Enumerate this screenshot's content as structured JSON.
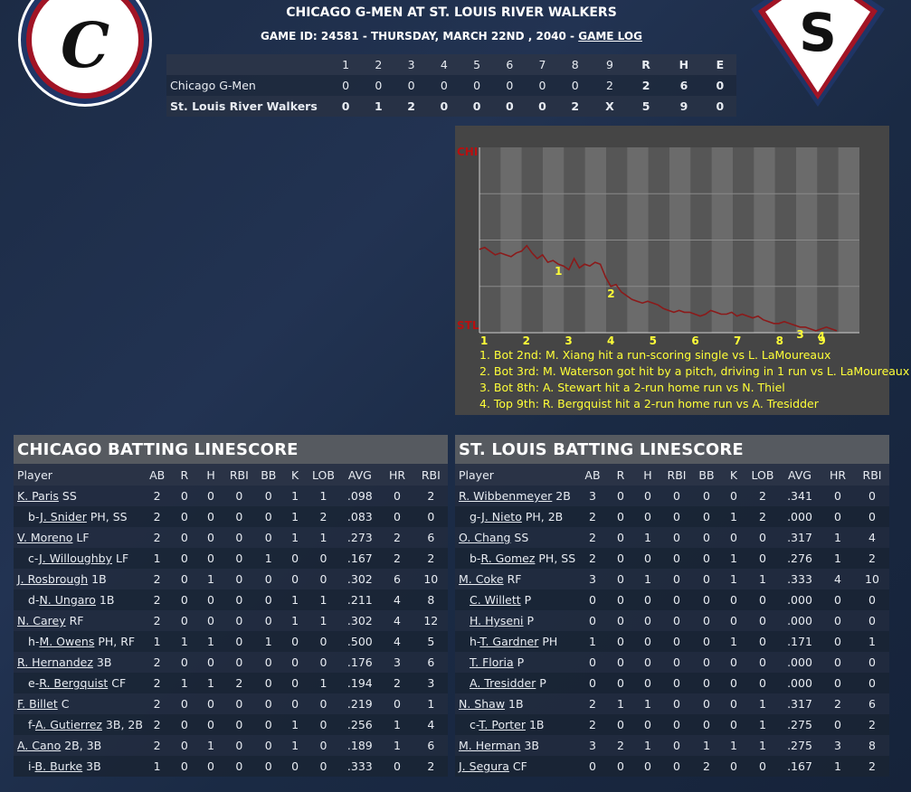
{
  "header": {
    "title": "CHICAGO G-MEN AT ST. LOUIS RIVER WALKERS",
    "game_info": "GAME ID: 24581 - THURSDAY, MARCH 22ND , 2040 - ",
    "game_log_link": "GAME LOG",
    "away_logo_letter": "C",
    "home_logo_letter": "S"
  },
  "linescore": {
    "columns": [
      "",
      "1",
      "2",
      "3",
      "4",
      "5",
      "6",
      "7",
      "8",
      "9",
      "R",
      "H",
      "E"
    ],
    "away": {
      "team": "Chicago G-Men",
      "innings": [
        "0",
        "0",
        "0",
        "0",
        "0",
        "0",
        "0",
        "0",
        "2"
      ],
      "R": "2",
      "H": "6",
      "E": "0"
    },
    "home": {
      "team": "St. Louis River Walkers",
      "innings": [
        "0",
        "1",
        "2",
        "0",
        "0",
        "0",
        "0",
        "2",
        "X"
      ],
      "R": "5",
      "H": "9",
      "E": "0"
    }
  },
  "win_prob": {
    "top_label": "CHI",
    "bottom_label": "STL",
    "innings": [
      "1",
      "2",
      "3",
      "4",
      "5",
      "6",
      "7",
      "8",
      "9"
    ],
    "series_stl_win_prob": [
      0.45,
      0.46,
      0.44,
      0.42,
      0.43,
      0.42,
      0.41,
      0.43,
      0.44,
      0.47,
      0.43,
      0.4,
      0.42,
      0.38,
      0.39,
      0.37,
      0.36,
      0.34,
      0.4,
      0.35,
      0.37,
      0.36,
      0.38,
      0.37,
      0.3,
      0.25,
      0.26,
      0.22,
      0.2,
      0.18,
      0.17,
      0.16,
      0.17,
      0.16,
      0.15,
      0.13,
      0.12,
      0.11,
      0.12,
      0.11,
      0.11,
      0.1,
      0.09,
      0.1,
      0.12,
      0.11,
      0.1,
      0.1,
      0.11,
      0.09,
      0.1,
      0.09,
      0.08,
      0.09,
      0.07,
      0.06,
      0.05,
      0.05,
      0.06,
      0.05,
      0.04,
      0.03,
      0.03,
      0.02,
      0.01,
      0.02,
      0.03,
      0.02,
      0.01
    ],
    "markers": [
      {
        "label": "1",
        "index": 15
      },
      {
        "label": "2",
        "index": 25
      },
      {
        "label": "3",
        "index": 61
      },
      {
        "label": "4",
        "index": 65
      }
    ],
    "notes": [
      "1. Bot 2nd: M. Xiang hit a run-scoring single vs L. LaMoureaux",
      "2. Bot 3rd: M. Waterson got hit by a pitch, driving in 1 run vs L. LaMoureaux",
      "3. Bot 8th: A. Stewart hit a 2-run home run vs N. Thiel",
      "4. Top 9th: R. Bergquist hit a 2-run home run vs A. Tresidder"
    ],
    "colors": {
      "line": "#8b1a1a",
      "markers": "#ffff38",
      "label": "#b80f0f"
    }
  },
  "chicago": {
    "title": "CHICAGO BATTING LINESCORE",
    "headers": [
      "Player",
      "AB",
      "R",
      "H",
      "RBI",
      "BB",
      "K",
      "LOB",
      "AVG",
      "HR",
      "RBI"
    ],
    "rows": [
      {
        "prefix": "",
        "name": "K. Paris",
        "pos": " SS",
        "stats": [
          "2",
          "0",
          "0",
          "0",
          "0",
          "1",
          "1",
          ".098",
          "0",
          "2"
        ]
      },
      {
        "prefix": "b-",
        "name": "J. Snider",
        "pos": " PH, SS",
        "stats": [
          "2",
          "0",
          "0",
          "0",
          "0",
          "1",
          "2",
          ".083",
          "0",
          "0"
        ]
      },
      {
        "prefix": "",
        "name": "V. Moreno",
        "pos": " LF",
        "stats": [
          "2",
          "0",
          "0",
          "0",
          "0",
          "1",
          "1",
          ".273",
          "2",
          "6"
        ]
      },
      {
        "prefix": "c-",
        "name": "J. Willoughby",
        "pos": " LF",
        "stats": [
          "1",
          "0",
          "0",
          "0",
          "1",
          "0",
          "0",
          ".167",
          "2",
          "2"
        ]
      },
      {
        "prefix": "",
        "name": "J. Rosbrough",
        "pos": " 1B",
        "stats": [
          "2",
          "0",
          "1",
          "0",
          "0",
          "0",
          "0",
          ".302",
          "6",
          "10"
        ]
      },
      {
        "prefix": "d-",
        "name": "N. Ungaro",
        "pos": " 1B",
        "stats": [
          "2",
          "0",
          "0",
          "0",
          "0",
          "1",
          "1",
          ".211",
          "4",
          "8"
        ]
      },
      {
        "prefix": "",
        "name": "N. Carey",
        "pos": " RF",
        "stats": [
          "2",
          "0",
          "0",
          "0",
          "0",
          "1",
          "1",
          ".302",
          "4",
          "12"
        ]
      },
      {
        "prefix": "h-",
        "name": "M. Owens",
        "pos": " PH, RF",
        "stats": [
          "1",
          "1",
          "1",
          "0",
          "1",
          "0",
          "0",
          ".500",
          "4",
          "5"
        ]
      },
      {
        "prefix": "",
        "name": "R. Hernandez",
        "pos": " 3B",
        "stats": [
          "2",
          "0",
          "0",
          "0",
          "0",
          "0",
          "0",
          ".176",
          "3",
          "6"
        ]
      },
      {
        "prefix": "e-",
        "name": "R. Bergquist",
        "pos": " CF",
        "stats": [
          "2",
          "1",
          "1",
          "2",
          "0",
          "0",
          "1",
          ".194",
          "2",
          "3"
        ]
      },
      {
        "prefix": "",
        "name": "F. Billet",
        "pos": " C",
        "stats": [
          "2",
          "0",
          "0",
          "0",
          "0",
          "0",
          "0",
          ".219",
          "0",
          "1"
        ]
      },
      {
        "prefix": "f-",
        "name": "A. Gutierrez",
        "pos": " 3B, 2B",
        "stats": [
          "2",
          "0",
          "0",
          "0",
          "0",
          "1",
          "0",
          ".256",
          "1",
          "4"
        ]
      },
      {
        "prefix": "",
        "name": "A. Cano",
        "pos": " 2B, 3B",
        "stats": [
          "2",
          "0",
          "1",
          "0",
          "0",
          "1",
          "0",
          ".189",
          "1",
          "6"
        ]
      },
      {
        "prefix": "i-",
        "name": "B. Burke",
        "pos": " 3B",
        "stats": [
          "1",
          "0",
          "0",
          "0",
          "0",
          "0",
          "0",
          ".333",
          "0",
          "2"
        ]
      }
    ]
  },
  "stlouis": {
    "title": "ST. LOUIS BATTING LINESCORE",
    "headers": [
      "Player",
      "AB",
      "R",
      "H",
      "RBI",
      "BB",
      "K",
      "LOB",
      "AVG",
      "HR",
      "RBI"
    ],
    "rows": [
      {
        "prefix": "",
        "name": "R. Wibbenmeyer",
        "pos": " 2B",
        "stats": [
          "3",
          "0",
          "0",
          "0",
          "0",
          "0",
          "2",
          ".341",
          "0",
          "0"
        ]
      },
      {
        "prefix": "g-",
        "name": "J. Nieto",
        "pos": " PH, 2B",
        "stats": [
          "2",
          "0",
          "0",
          "0",
          "0",
          "1",
          "2",
          ".000",
          "0",
          "0"
        ]
      },
      {
        "prefix": "",
        "name": "O. Chang",
        "pos": " SS",
        "stats": [
          "2",
          "0",
          "1",
          "0",
          "0",
          "0",
          "0",
          ".317",
          "1",
          "4"
        ]
      },
      {
        "prefix": "b-",
        "name": "R. Gomez",
        "pos": " PH, SS",
        "stats": [
          "2",
          "0",
          "0",
          "0",
          "0",
          "1",
          "0",
          ".276",
          "1",
          "2"
        ]
      },
      {
        "prefix": "",
        "name": "M. Coke",
        "pos": " RF",
        "stats": [
          "3",
          "0",
          "1",
          "0",
          "0",
          "1",
          "1",
          ".333",
          "4",
          "10"
        ]
      },
      {
        "prefix": "",
        "name": "C. Willett",
        "pos": " P",
        "stats": [
          "0",
          "0",
          "0",
          "0",
          "0",
          "0",
          "0",
          ".000",
          "0",
          "0"
        ],
        "indent": true
      },
      {
        "prefix": "",
        "name": "H. Hyseni",
        "pos": " P",
        "stats": [
          "0",
          "0",
          "0",
          "0",
          "0",
          "0",
          "0",
          ".000",
          "0",
          "0"
        ],
        "indent": true
      },
      {
        "prefix": "h-",
        "name": "T. Gardner",
        "pos": " PH",
        "stats": [
          "1",
          "0",
          "0",
          "0",
          "0",
          "1",
          "0",
          ".171",
          "0",
          "1"
        ]
      },
      {
        "prefix": "",
        "name": "T. Floria",
        "pos": " P",
        "stats": [
          "0",
          "0",
          "0",
          "0",
          "0",
          "0",
          "0",
          ".000",
          "0",
          "0"
        ],
        "indent": true
      },
      {
        "prefix": "",
        "name": "A. Tresidder",
        "pos": " P",
        "stats": [
          "0",
          "0",
          "0",
          "0",
          "0",
          "0",
          "0",
          ".000",
          "0",
          "0"
        ],
        "indent": true
      },
      {
        "prefix": "",
        "name": "N. Shaw",
        "pos": " 1B",
        "stats": [
          "2",
          "1",
          "1",
          "0",
          "0",
          "0",
          "1",
          ".317",
          "2",
          "6"
        ]
      },
      {
        "prefix": "c-",
        "name": "T. Porter",
        "pos": " 1B",
        "stats": [
          "2",
          "0",
          "0",
          "0",
          "0",
          "0",
          "1",
          ".275",
          "0",
          "2"
        ]
      },
      {
        "prefix": "",
        "name": "M. Herman",
        "pos": " 3B",
        "stats": [
          "3",
          "2",
          "1",
          "0",
          "1",
          "1",
          "1",
          ".275",
          "3",
          "8"
        ]
      },
      {
        "prefix": "",
        "name": "J. Segura",
        "pos": " CF",
        "stats": [
          "0",
          "0",
          "0",
          "0",
          "2",
          "0",
          "0",
          ".167",
          "1",
          "2"
        ]
      }
    ]
  }
}
